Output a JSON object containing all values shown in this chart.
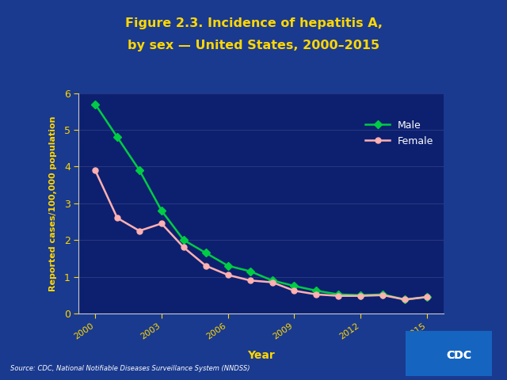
{
  "title_line1": "Figure 2.3. Incidence of hepatitis A,",
  "title_line2": "by sex — United States, 2000–2015",
  "title_color": "#FFD700",
  "xlabel": "Year",
  "ylabel": "Reported cases/100,000 population",
  "axis_label_color": "#FFD700",
  "tick_label_color": "#FFD700",
  "source_text": "Source: CDC, National Notifiable Diseases Surveillance System (NNDSS)",
  "background_outer": "#1A3A8F",
  "background_plot": "#0D2070",
  "axis_color": "#cccccc",
  "ylim": [
    0,
    6
  ],
  "yticks": [
    0,
    1,
    2,
    3,
    4,
    5,
    6
  ],
  "years": [
    2000,
    2001,
    2002,
    2003,
    2004,
    2005,
    2006,
    2007,
    2008,
    2009,
    2010,
    2011,
    2012,
    2013,
    2014,
    2015
  ],
  "male_values": [
    5.7,
    4.8,
    3.9,
    2.8,
    2.0,
    1.65,
    1.3,
    1.15,
    0.9,
    0.75,
    0.62,
    0.52,
    0.5,
    0.52,
    0.38,
    0.45
  ],
  "female_values": [
    3.9,
    2.6,
    2.25,
    2.45,
    1.8,
    1.3,
    1.05,
    0.9,
    0.85,
    0.62,
    0.52,
    0.48,
    0.48,
    0.5,
    0.38,
    0.45
  ],
  "male_color": "#00CC44",
  "female_color": "#FFB0B0",
  "line_width": 1.8,
  "marker_male": "D",
  "marker_female": "o",
  "marker_size": 5,
  "xticks": [
    2000,
    2003,
    2006,
    2009,
    2012,
    2015
  ],
  "legend_male": "Male",
  "legend_female": "Female",
  "grid_color": "#8888bb",
  "grid_alpha": 0.4
}
